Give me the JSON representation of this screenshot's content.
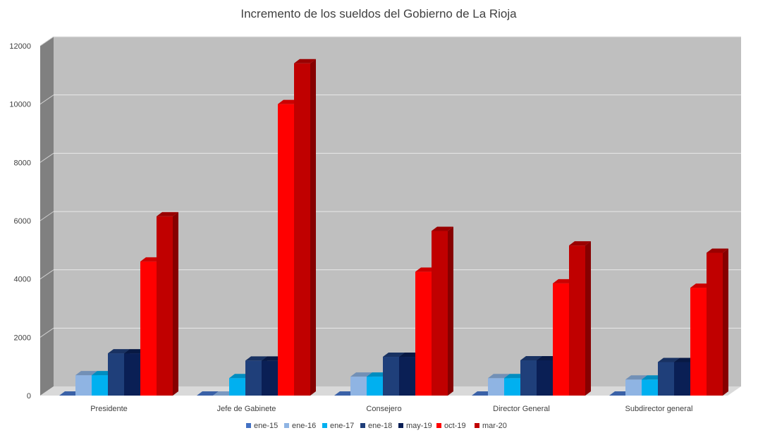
{
  "chart_data": {
    "type": "bar",
    "title": "Incremento de los sueldos del Gobierno de La Rioja",
    "xlabel": "",
    "ylabel": "",
    "ylim": [
      0,
      12000
    ],
    "yticks": [
      0,
      2000,
      4000,
      6000,
      8000,
      10000,
      12000
    ],
    "grid": true,
    "legend": "bottom",
    "categories": [
      "Presidente",
      "Jefe de Gabinete",
      "Consejero",
      "Director General",
      "Subdirector general"
    ],
    "series": [
      {
        "name": "ene-15",
        "color": "#4472c4",
        "values": [
          0,
          0,
          0,
          0,
          0
        ]
      },
      {
        "name": "ene-16",
        "color": "#8fb4e3",
        "values": [
          700,
          0,
          650,
          600,
          550
        ]
      },
      {
        "name": "ene-17",
        "color": "#00b0f0",
        "values": [
          700,
          600,
          650,
          600,
          550
        ]
      },
      {
        "name": "ene-18",
        "color": "#1f3f7a",
        "values": [
          1450,
          1200,
          1330,
          1210,
          1150
        ]
      },
      {
        "name": "may-19",
        "color": "#0a1f55",
        "values": [
          1450,
          1200,
          1330,
          1210,
          1150
        ]
      },
      {
        "name": "oct-19",
        "color": "#ff0000",
        "values": [
          4600,
          10000,
          4250,
          3850,
          3700
        ]
      },
      {
        "name": "mar-20",
        "color": "#c00000",
        "values": [
          6150,
          11400,
          5650,
          5150,
          4900
        ]
      }
    ]
  }
}
